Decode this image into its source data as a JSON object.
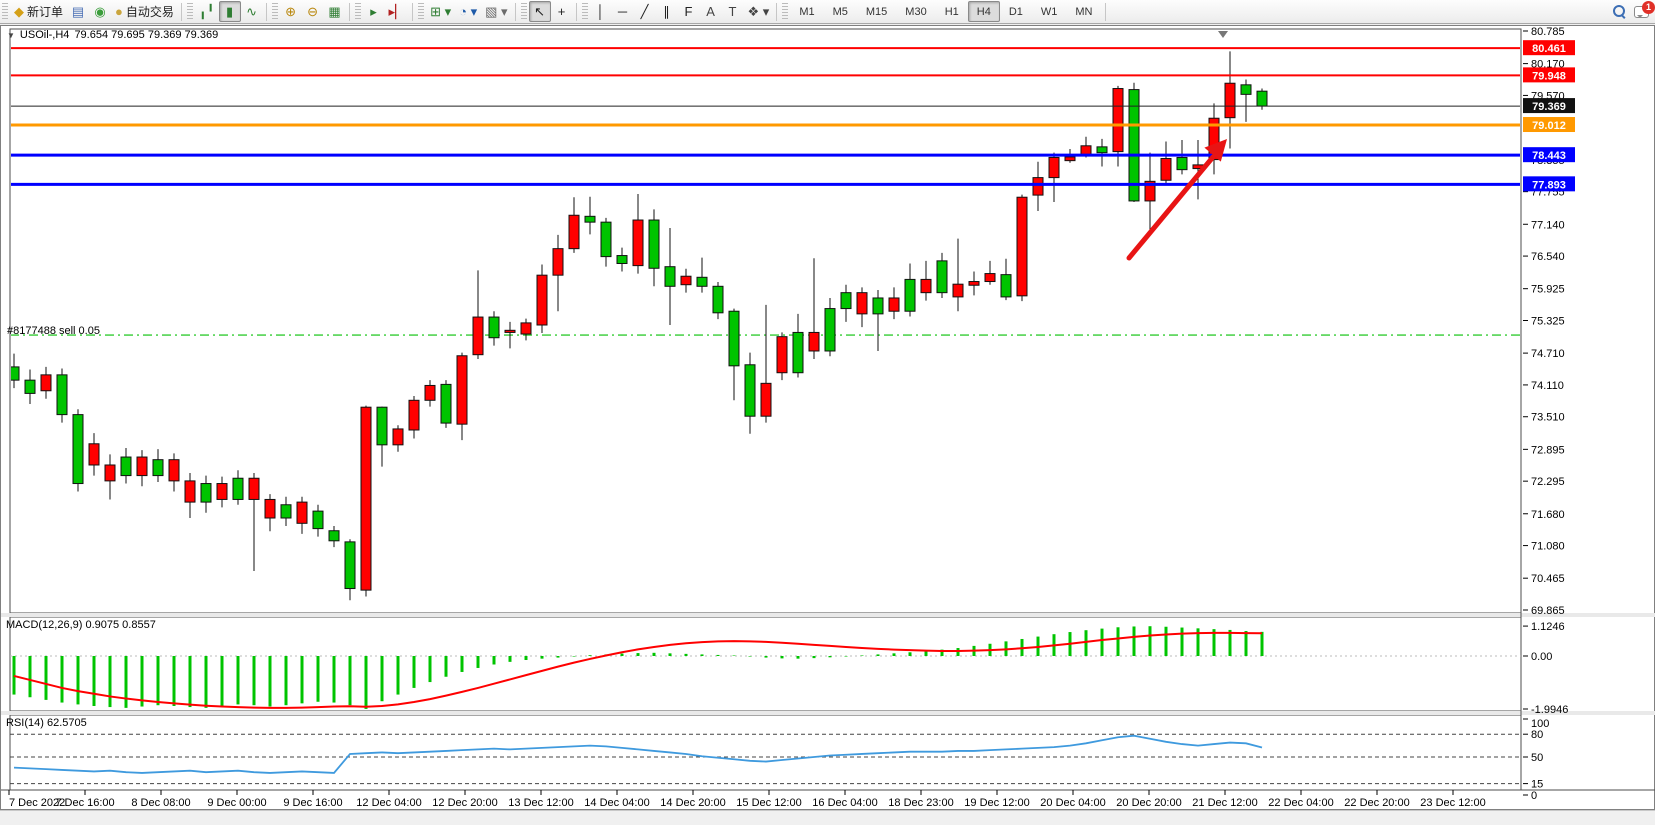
{
  "toolbar": {
    "groups": [
      {
        "name": "trade-group",
        "items": [
          {
            "name": "new-order-button",
            "label": "新订单",
            "glyph": "◆",
            "color": "#d4a017"
          },
          {
            "name": "market-watch-button",
            "glyph": "▤",
            "color": "#4a6fb5"
          },
          {
            "name": "signals-button",
            "glyph": "◉",
            "color": "#3a9d3a"
          },
          {
            "name": "auto-trading-button",
            "label": "自动交易",
            "glyph": "●",
            "color": "#caa53d"
          }
        ]
      },
      {
        "name": "chart-type-group",
        "items": [
          {
            "name": "bar-chart-button",
            "glyph": "╻╹",
            "color": "#2e7d32"
          },
          {
            "name": "candlestick-chart-button",
            "glyph": "▮",
            "color": "#2e7d32",
            "active": true
          },
          {
            "name": "line-chart-button",
            "glyph": "∿",
            "color": "#2e7d32"
          }
        ]
      },
      {
        "name": "zoom-group",
        "items": [
          {
            "name": "zoom-in-button",
            "glyph": "⊕",
            "color": "#b8860b"
          },
          {
            "name": "zoom-out-button",
            "glyph": "⊖",
            "color": "#b8860b"
          },
          {
            "name": "tile-windows-button",
            "glyph": "▦",
            "color": "#2e7d32"
          }
        ]
      },
      {
        "name": "scroll-group",
        "items": [
          {
            "name": "auto-scroll-button",
            "glyph": "▸",
            "color": "#2e7d32"
          },
          {
            "name": "chart-shift-button",
            "glyph": "▸▏",
            "color": "#b22222"
          }
        ]
      },
      {
        "name": "add-group",
        "items": [
          {
            "name": "add-indicator-button",
            "glyph": "⊞ ▾",
            "color": "#2e7d32"
          },
          {
            "name": "periods-button",
            "glyph": "◔ ▾",
            "color": "#1e5aa8"
          },
          {
            "name": "templates-button",
            "glyph": "▧ ▾",
            "color": "#6b6b6b"
          }
        ]
      },
      {
        "name": "cursor-group",
        "items": [
          {
            "name": "cursor-button",
            "glyph": "↖",
            "color": "#222",
            "active": true
          },
          {
            "name": "crosshair-button",
            "glyph": "+",
            "color": "#222"
          }
        ]
      },
      {
        "name": "objects-group",
        "items": [
          {
            "name": "vertical-line-button",
            "glyph": "│",
            "color": "#222"
          },
          {
            "name": "horizontal-line-button",
            "glyph": "─",
            "color": "#222"
          },
          {
            "name": "trendline-button",
            "glyph": "╱",
            "color": "#222"
          },
          {
            "name": "equidistant-channel-button",
            "glyph": "∥",
            "color": "#222"
          },
          {
            "name": "fibonacci-button",
            "glyph": "F",
            "color": "#222"
          },
          {
            "name": "text-button",
            "glyph": "A",
            "color": "#444"
          },
          {
            "name": "text-label-button",
            "glyph": "T",
            "color": "#444"
          },
          {
            "name": "arrows-button",
            "glyph": "❖ ▾",
            "color": "#444"
          }
        ]
      },
      {
        "name": "timeframe-group",
        "items": [
          {
            "name": "tf-m1-button",
            "label": "M1"
          },
          {
            "name": "tf-m5-button",
            "label": "M5"
          },
          {
            "name": "tf-m15-button",
            "label": "M15"
          },
          {
            "name": "tf-m30-button",
            "label": "M30"
          },
          {
            "name": "tf-h1-button",
            "label": "H1"
          },
          {
            "name": "tf-h4-button",
            "label": "H4",
            "active": true
          },
          {
            "name": "tf-d1-button",
            "label": "D1"
          },
          {
            "name": "tf-w1-button",
            "label": "W1"
          },
          {
            "name": "tf-mn-button",
            "label": "MN"
          }
        ]
      }
    ],
    "notification_badge": "1"
  },
  "chart": {
    "title": {
      "symbol_period": "USOil-,H4",
      "ohlc": "79.654 79.695 79.369 79.369"
    },
    "trade_label": "#8177488 sell 0.05",
    "colors": {
      "bull": "#00c400",
      "bear": "#ff0000",
      "wick": "#111111",
      "outline": "#111111",
      "macd_hist": "#00c400",
      "macd_signal": "#ff0000",
      "rsi_line": "#3f9ade",
      "trade_line": "#33cc33",
      "arrow": "#e81414",
      "axis_text": "#000000"
    },
    "price_axis_ticks": [
      80.785,
      80.17,
      79.57,
      78.955,
      78.355,
      77.755,
      77.14,
      76.54,
      75.925,
      75.325,
      74.71,
      74.11,
      73.51,
      72.895,
      72.295,
      71.68,
      71.08,
      70.465,
      69.865
    ],
    "hlines": [
      {
        "price": 80.461,
        "color": "#ff0000",
        "width": 2,
        "label": "80.461"
      },
      {
        "price": 79.948,
        "color": "#ff0000",
        "width": 2,
        "label": "79.948"
      },
      {
        "price": 79.369,
        "color": "#222222",
        "width": 1,
        "label": "79.369",
        "badge": "#111111"
      },
      {
        "price": 79.012,
        "color": "#ff9900",
        "width": 3,
        "label": "79.012"
      },
      {
        "price": 78.443,
        "color": "#0000ff",
        "width": 3,
        "label": "78.443"
      },
      {
        "price": 77.893,
        "color": "#0000ff",
        "width": 3,
        "label": "77.893"
      }
    ],
    "trade_line_price": 75.05,
    "time_axis_labels": [
      "7 Dec 2022",
      "7 Dec 16:00",
      "8 Dec 08:00",
      "9 Dec 00:00",
      "9 Dec 16:00",
      "12 Dec 04:00",
      "12 Dec 20:00",
      "13 Dec 12:00",
      "14 Dec 04:00",
      "14 Dec 20:00",
      "15 Dec 12:00",
      "16 Dec 04:00",
      "18 Dec 23:00",
      "19 Dec 12:00",
      "20 Dec 04:00",
      "20 Dec 20:00",
      "21 Dec 12:00",
      "22 Dec 04:00",
      "22 Dec 20:00",
      "23 Dec 12:00"
    ]
  },
  "macd_panel": {
    "label": "MACD(12,26,9) 0.9075 0.8557",
    "axis": [
      "1.1246",
      "0.00",
      "-1.9946"
    ],
    "axis_values": [
      1.1246,
      0,
      -1.9946
    ]
  },
  "rsi_panel": {
    "label": "RSI(14) 62.5705",
    "axis": [
      "100",
      "80",
      "50",
      "15",
      "0"
    ],
    "axis_values": [
      100,
      80,
      50,
      15,
      0
    ],
    "levels": [
      80,
      50,
      15
    ]
  },
  "chart_data": {
    "type": "candlestick",
    "symbol": "USOil",
    "period": "H4",
    "title_ohlc": {
      "open": 79.654,
      "high": 79.695,
      "low": 79.369,
      "close": 79.369
    },
    "y_axis_range": [
      69.865,
      80.785
    ],
    "candles_ohlc": [
      [
        74.2,
        74.7,
        74.05,
        74.45
      ],
      [
        73.95,
        74.4,
        73.75,
        74.2
      ],
      [
        74.3,
        74.45,
        73.85,
        74.0
      ],
      [
        73.55,
        74.42,
        73.4,
        74.3
      ],
      [
        72.25,
        73.65,
        72.1,
        73.55
      ],
      [
        73.0,
        73.2,
        72.4,
        72.6
      ],
      [
        72.6,
        72.8,
        71.95,
        72.3
      ],
      [
        72.4,
        72.92,
        72.25,
        72.75
      ],
      [
        72.75,
        72.88,
        72.2,
        72.4
      ],
      [
        72.4,
        72.9,
        72.28,
        72.7
      ],
      [
        72.7,
        72.82,
        72.1,
        72.3
      ],
      [
        72.3,
        72.45,
        71.6,
        71.9
      ],
      [
        71.9,
        72.4,
        71.7,
        72.25
      ],
      [
        72.25,
        72.38,
        71.8,
        71.95
      ],
      [
        71.95,
        72.5,
        71.85,
        72.35
      ],
      [
        72.35,
        72.45,
        70.6,
        71.95
      ],
      [
        71.95,
        72.05,
        71.35,
        71.6
      ],
      [
        71.6,
        72.0,
        71.45,
        71.85
      ],
      [
        71.9,
        72.0,
        71.3,
        71.5
      ],
      [
        71.4,
        71.85,
        71.25,
        71.73
      ],
      [
        71.17,
        71.45,
        71.05,
        71.36
      ],
      [
        70.27,
        71.2,
        70.05,
        71.15
      ],
      [
        73.69,
        73.72,
        70.12,
        70.24
      ],
      [
        72.98,
        73.7,
        72.57,
        73.69
      ],
      [
        73.28,
        73.35,
        72.85,
        72.98
      ],
      [
        73.82,
        73.9,
        73.1,
        73.26
      ],
      [
        74.1,
        74.2,
        73.7,
        73.82
      ],
      [
        73.39,
        74.2,
        73.3,
        74.12
      ],
      [
        74.66,
        74.72,
        73.07,
        73.37
      ],
      [
        75.39,
        76.27,
        74.6,
        74.68
      ],
      [
        75.0,
        75.5,
        74.85,
        75.39
      ],
      [
        75.14,
        75.3,
        74.8,
        75.1
      ],
      [
        75.28,
        75.36,
        74.95,
        75.07
      ],
      [
        76.18,
        76.38,
        75.09,
        75.24
      ],
      [
        76.68,
        76.94,
        75.5,
        76.18
      ],
      [
        77.31,
        77.65,
        76.6,
        76.68
      ],
      [
        77.18,
        77.66,
        76.95,
        77.29
      ],
      [
        76.53,
        77.26,
        76.34,
        77.18
      ],
      [
        76.4,
        76.7,
        76.25,
        76.55
      ],
      [
        77.22,
        77.71,
        76.21,
        76.36
      ],
      [
        76.31,
        77.42,
        75.97,
        77.22
      ],
      [
        75.97,
        77.07,
        75.24,
        76.34
      ],
      [
        76.16,
        76.3,
        75.85,
        76.0
      ],
      [
        75.97,
        76.51,
        75.85,
        76.14
      ],
      [
        75.47,
        76.05,
        75.35,
        75.97
      ],
      [
        74.47,
        75.55,
        73.82,
        75.5
      ],
      [
        73.52,
        74.72,
        73.19,
        74.49
      ],
      [
        74.14,
        75.62,
        73.4,
        73.52
      ],
      [
        75.02,
        75.1,
        74.2,
        74.34
      ],
      [
        74.34,
        75.45,
        74.25,
        75.1
      ],
      [
        75.1,
        76.5,
        74.6,
        74.75
      ],
      [
        74.75,
        75.75,
        74.65,
        75.55
      ],
      [
        75.55,
        76.0,
        75.3,
        75.85
      ],
      [
        75.85,
        75.95,
        75.2,
        75.45
      ],
      [
        75.45,
        75.9,
        74.75,
        75.75
      ],
      [
        75.75,
        75.95,
        75.35,
        75.5
      ],
      [
        75.5,
        76.4,
        75.4,
        76.1
      ],
      [
        76.1,
        76.45,
        75.7,
        75.85
      ],
      [
        75.85,
        76.6,
        75.75,
        76.45
      ],
      [
        76.01,
        76.87,
        75.5,
        75.77
      ],
      [
        76.06,
        76.25,
        75.8,
        75.99
      ],
      [
        76.21,
        76.45,
        76.0,
        76.06
      ],
      [
        75.77,
        76.49,
        75.71,
        76.19
      ],
      [
        77.65,
        77.7,
        75.69,
        75.79
      ],
      [
        78.02,
        78.32,
        77.39,
        77.69
      ],
      [
        78.4,
        78.49,
        77.56,
        78.02
      ],
      [
        78.41,
        78.56,
        78.3,
        78.34
      ],
      [
        78.62,
        78.79,
        78.4,
        78.43
      ],
      [
        78.49,
        78.75,
        78.23,
        78.6
      ],
      [
        79.7,
        79.75,
        78.23,
        78.51
      ],
      [
        77.58,
        79.81,
        77.56,
        79.68
      ],
      [
        77.95,
        78.49,
        77.0,
        77.58
      ],
      [
        78.38,
        78.7,
        77.87,
        77.97
      ],
      [
        78.17,
        78.73,
        78.08,
        78.4
      ],
      [
        78.26,
        78.73,
        77.61,
        78.19
      ],
      [
        79.14,
        79.42,
        78.08,
        78.36
      ],
      [
        79.8,
        80.4,
        78.57,
        79.15
      ],
      [
        79.59,
        79.87,
        79.07,
        79.77
      ],
      [
        79.37,
        79.7,
        79.3,
        79.65
      ]
    ],
    "indicators": {
      "macd": {
        "label": "MACD(12,26,9)",
        "main": 0.9075,
        "signal_current": 0.8557,
        "range": [
          -1.9946,
          1.1246
        ],
        "histogram": [
          -1.45,
          -1.55,
          -1.65,
          -1.75,
          -1.82,
          -1.88,
          -1.92,
          -1.95,
          -1.9,
          -1.85,
          -1.88,
          -1.92,
          -1.95,
          -1.9,
          -1.82,
          -1.85,
          -1.9,
          -1.85,
          -1.78,
          -1.72,
          -1.75,
          -1.85,
          -1.99,
          -1.7,
          -1.45,
          -1.2,
          -0.98,
          -0.78,
          -0.6,
          -0.45,
          -0.32,
          -0.22,
          -0.15,
          -0.1,
          -0.06,
          -0.02,
          0.03,
          0.06,
          0.09,
          0.11,
          0.12,
          0.1,
          0.08,
          0.06,
          0.04,
          0.02,
          -0.02,
          -0.06,
          -0.09,
          -0.1,
          -0.08,
          -0.05,
          -0.02,
          0.02,
          0.06,
          0.1,
          0.14,
          0.18,
          0.24,
          0.3,
          0.38,
          0.46,
          0.55,
          0.64,
          0.73,
          0.82,
          0.9,
          0.97,
          1.03,
          1.08,
          1.11,
          1.12,
          1.1,
          1.07,
          1.04,
          1.01,
          0.98,
          0.94,
          0.9075
        ],
        "signal": [
          -0.75,
          -0.9,
          -1.05,
          -1.2,
          -1.32,
          -1.42,
          -1.52,
          -1.6,
          -1.67,
          -1.73,
          -1.78,
          -1.83,
          -1.87,
          -1.9,
          -1.92,
          -1.94,
          -1.95,
          -1.95,
          -1.94,
          -1.92,
          -1.9,
          -1.89,
          -1.91,
          -1.88,
          -1.82,
          -1.73,
          -1.62,
          -1.49,
          -1.35,
          -1.2,
          -1.04,
          -0.88,
          -0.72,
          -0.56,
          -0.4,
          -0.25,
          -0.11,
          0.02,
          0.14,
          0.25,
          0.34,
          0.42,
          0.48,
          0.52,
          0.55,
          0.56,
          0.55,
          0.53,
          0.5,
          0.46,
          0.42,
          0.38,
          0.34,
          0.3,
          0.27,
          0.24,
          0.22,
          0.2,
          0.19,
          0.19,
          0.2,
          0.22,
          0.25,
          0.29,
          0.34,
          0.4,
          0.46,
          0.53,
          0.6,
          0.66,
          0.72,
          0.77,
          0.81,
          0.84,
          0.86,
          0.87,
          0.87,
          0.86,
          0.8557
        ]
      },
      "rsi": {
        "label": "RSI(14)",
        "current": 62.5705,
        "values": [
          36,
          35,
          34,
          33,
          32,
          31,
          32,
          30,
          29,
          30,
          31,
          32,
          30,
          31,
          32,
          30,
          29,
          30,
          31,
          30,
          29,
          54,
          55,
          56,
          55,
          56,
          57,
          58,
          59,
          60,
          61,
          60,
          61,
          62,
          63,
          64,
          65,
          64,
          62,
          60,
          58,
          56,
          54,
          51,
          49,
          47,
          45,
          44,
          46,
          48,
          50,
          52,
          53,
          54,
          55,
          56,
          57,
          57,
          57,
          58,
          58,
          59,
          60,
          61,
          62,
          63,
          65,
          68,
          72,
          76,
          78,
          74,
          70,
          67,
          65,
          67,
          69,
          68,
          62.57
        ]
      }
    }
  }
}
